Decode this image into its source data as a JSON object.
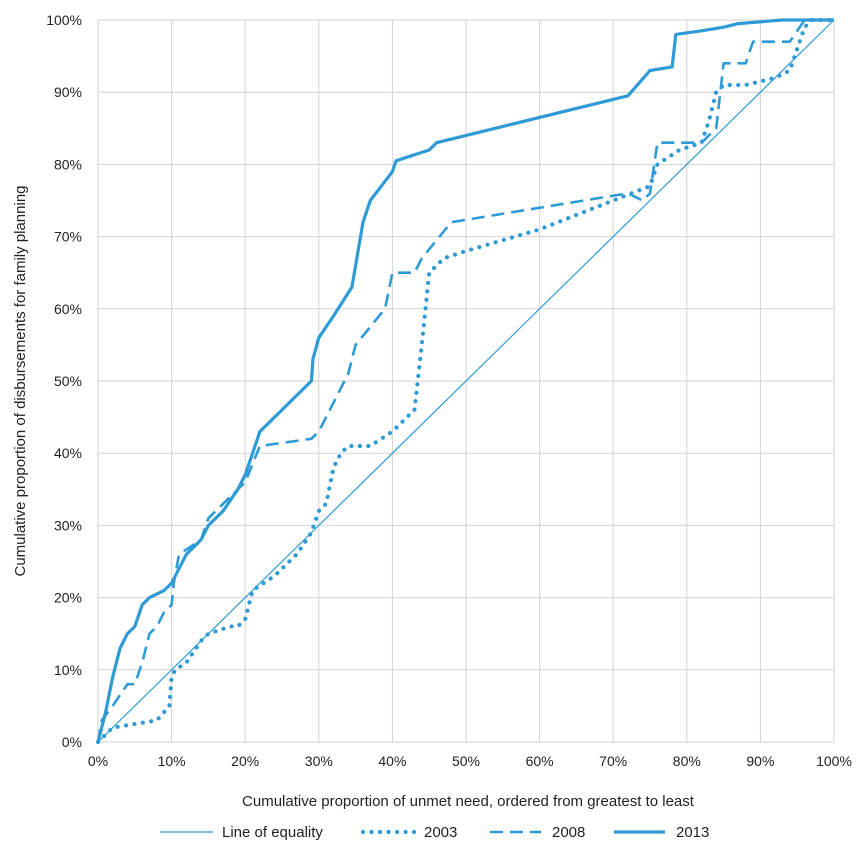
{
  "chart_data": {
    "type": "line",
    "title": "",
    "xlabel": "Cumulative proportion of unmet need, ordered from greatest to least",
    "ylabel": "Cumulative proportion of disbursements for family planning",
    "xlim": [
      0,
      100
    ],
    "ylim": [
      0,
      100
    ],
    "x_ticks": [
      "0%",
      "10%",
      "20%",
      "30%",
      "40%",
      "50%",
      "60%",
      "70%",
      "80%",
      "90%",
      "100%"
    ],
    "y_ticks": [
      "0%",
      "10%",
      "20%",
      "30%",
      "40%",
      "50%",
      "60%",
      "70%",
      "80%",
      "90%",
      "100%"
    ],
    "grid": true,
    "legend_position": "bottom",
    "color": "#2f9bd6",
    "series": [
      {
        "name": "Line of equality",
        "style": "thin",
        "points": [
          [
            0,
            0
          ],
          [
            100,
            100
          ]
        ]
      },
      {
        "name": "2003",
        "style": "dotted",
        "points": [
          [
            0,
            0
          ],
          [
            2,
            2
          ],
          [
            5,
            2.5
          ],
          [
            8,
            3
          ],
          [
            9.7,
            5
          ],
          [
            10,
            9
          ],
          [
            10.5,
            10
          ],
          [
            12,
            11
          ],
          [
            14,
            14
          ],
          [
            15,
            15
          ],
          [
            18,
            16
          ],
          [
            19,
            16
          ],
          [
            20,
            17
          ],
          [
            21,
            21
          ],
          [
            24,
            23
          ],
          [
            27,
            26
          ],
          [
            29,
            29
          ],
          [
            30,
            32
          ],
          [
            31,
            33
          ],
          [
            32,
            38
          ],
          [
            33,
            40
          ],
          [
            34,
            41
          ],
          [
            37,
            41
          ],
          [
            40,
            43
          ],
          [
            41,
            44
          ],
          [
            43,
            46
          ],
          [
            44,
            55
          ],
          [
            45,
            65
          ],
          [
            46,
            66
          ],
          [
            47,
            67
          ],
          [
            50,
            68
          ],
          [
            60,
            71
          ],
          [
            70,
            75
          ],
          [
            75,
            77
          ],
          [
            76,
            80
          ],
          [
            79,
            82
          ],
          [
            82,
            83
          ],
          [
            83,
            86
          ],
          [
            84,
            90
          ],
          [
            85,
            91
          ],
          [
            88,
            91
          ],
          [
            92,
            92
          ],
          [
            94,
            93
          ],
          [
            95,
            96
          ],
          [
            96,
            99
          ],
          [
            97,
            100
          ],
          [
            100,
            100
          ]
        ]
      },
      {
        "name": "2008",
        "style": "dashed",
        "points": [
          [
            0,
            0
          ],
          [
            0.5,
            3
          ],
          [
            2,
            5
          ],
          [
            4,
            8
          ],
          [
            5,
            8
          ],
          [
            6,
            11
          ],
          [
            7,
            15
          ],
          [
            8,
            16
          ],
          [
            9,
            18
          ],
          [
            10,
            19
          ],
          [
            10.3,
            22
          ],
          [
            11,
            26
          ],
          [
            14,
            28
          ],
          [
            15,
            31
          ],
          [
            20,
            36
          ],
          [
            22,
            41
          ],
          [
            29,
            42
          ],
          [
            30,
            43
          ],
          [
            34,
            51
          ],
          [
            35,
            55
          ],
          [
            39,
            60
          ],
          [
            40,
            65
          ],
          [
            43,
            65
          ],
          [
            44,
            67
          ],
          [
            48,
            72
          ],
          [
            72,
            76
          ],
          [
            74,
            75
          ],
          [
            75,
            76
          ],
          [
            76,
            83
          ],
          [
            80,
            83
          ],
          [
            82,
            83
          ],
          [
            84,
            85
          ],
          [
            85,
            94
          ],
          [
            88,
            94
          ],
          [
            89,
            97
          ],
          [
            93,
            97
          ],
          [
            94,
            97
          ],
          [
            96,
            100
          ],
          [
            100,
            100
          ]
        ]
      },
      {
        "name": "2013",
        "style": "solid",
        "points": [
          [
            0,
            0
          ],
          [
            1,
            4
          ],
          [
            2,
            9
          ],
          [
            3,
            13
          ],
          [
            4,
            15
          ],
          [
            5,
            16
          ],
          [
            6,
            19
          ],
          [
            7,
            20
          ],
          [
            8,
            20.5
          ],
          [
            9,
            21
          ],
          [
            10,
            22
          ],
          [
            11,
            24
          ],
          [
            12,
            26
          ],
          [
            13,
            27
          ],
          [
            14,
            28
          ],
          [
            15,
            30
          ],
          [
            17,
            32
          ],
          [
            19,
            35
          ],
          [
            20,
            37
          ],
          [
            21,
            40
          ],
          [
            22,
            43
          ],
          [
            23,
            44
          ],
          [
            25,
            46
          ],
          [
            27,
            48
          ],
          [
            29,
            50
          ],
          [
            29.2,
            53
          ],
          [
            30,
            56
          ],
          [
            32,
            59
          ],
          [
            34.5,
            63
          ],
          [
            36,
            72
          ],
          [
            37,
            75
          ],
          [
            40,
            79
          ],
          [
            40.5,
            80.5
          ],
          [
            42,
            81
          ],
          [
            45,
            82
          ],
          [
            46,
            83
          ],
          [
            72,
            89.5
          ],
          [
            75,
            93
          ],
          [
            78,
            93.5
          ],
          [
            78.5,
            98
          ],
          [
            82,
            98.5
          ],
          [
            85,
            99
          ],
          [
            87,
            99.5
          ],
          [
            93,
            100
          ],
          [
            100,
            100
          ]
        ]
      }
    ]
  }
}
